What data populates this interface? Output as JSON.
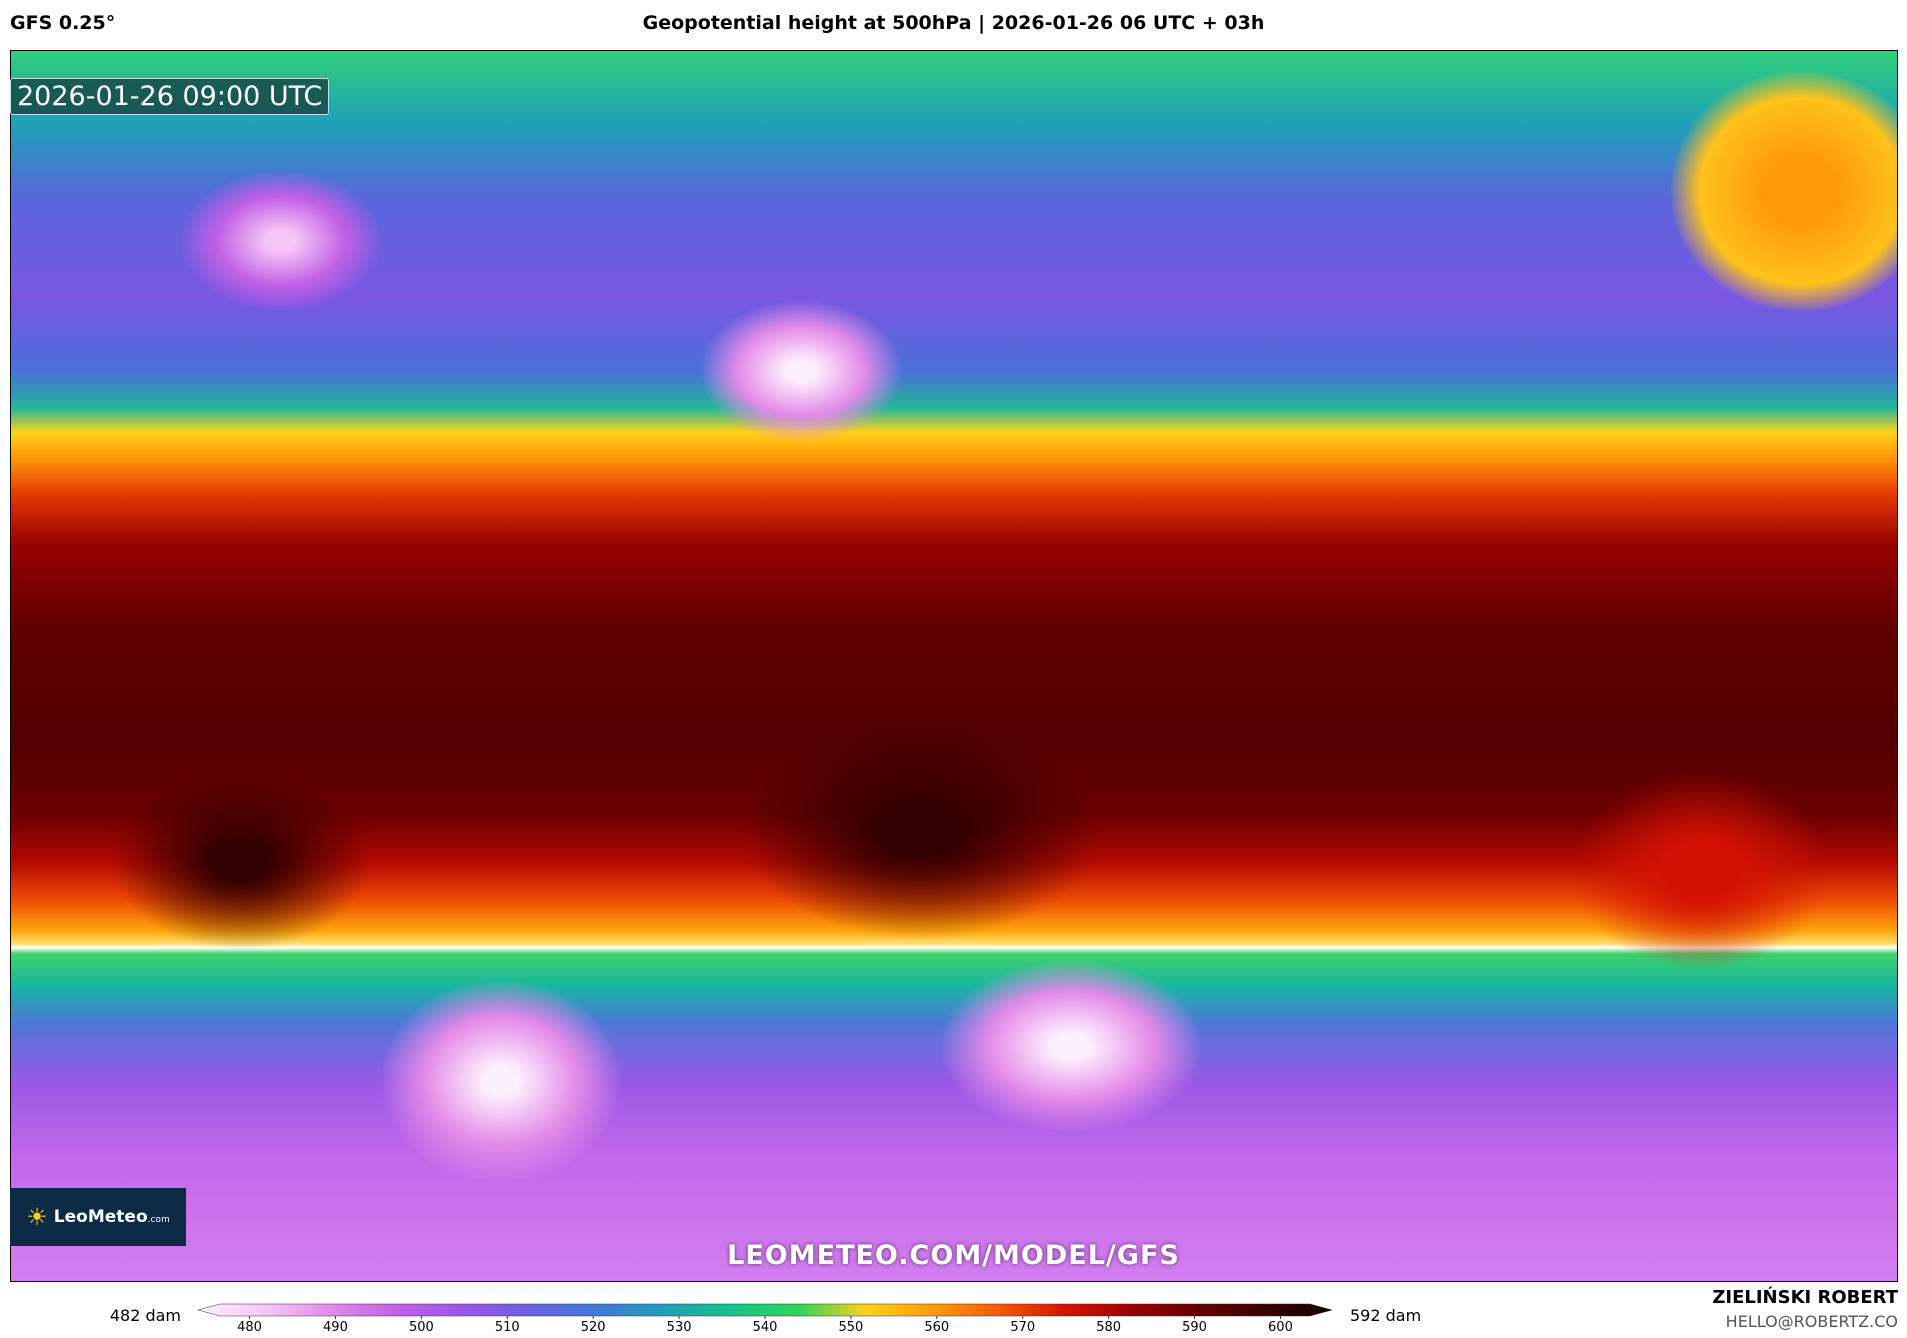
{
  "header": {
    "model": "GFS 0.25°",
    "title": "Geopotential height at 500hPa | 2026-01-26 06 UTC + 03h"
  },
  "map": {
    "timestamp": "2026-01-26 09:00 UTC",
    "logo": "LeoMeteo",
    "logo_suffix": ".com",
    "watermark": "LEOMETEO.COM/MODEL/GFS"
  },
  "colorbar": {
    "min_label": "482 dam",
    "max_label": "592 dam",
    "lim": [
      474,
      606
    ],
    "ticks": [
      480,
      490,
      500,
      510,
      520,
      530,
      540,
      550,
      560,
      570,
      580,
      590,
      600
    ],
    "colors": [
      "#fdf0fd",
      "#f6c6f6",
      "#e38ae8",
      "#c160e6",
      "#9a56e6",
      "#6a62e0",
      "#3f7ad6",
      "#1f9fb8",
      "#14c48a",
      "#2ed45a",
      "#ffd21a",
      "#ff9d0a",
      "#f45a06",
      "#d41204",
      "#9a0202",
      "#620000",
      "#3a0000",
      "#120000"
    ]
  },
  "footer": {
    "author": "ZIELIŃSKI ROBERT",
    "contact": "HELLO@ROBERTZ.CO"
  }
}
